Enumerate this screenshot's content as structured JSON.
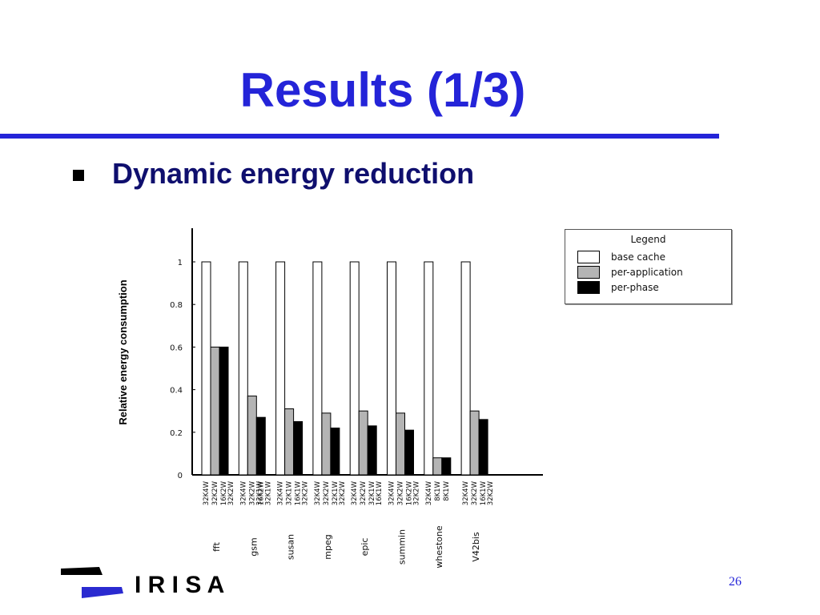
{
  "slide": {
    "title": "Results (1/3)",
    "bullet": "Dynamic energy reduction",
    "page_number": "26",
    "logo_text": "I R I S A"
  },
  "colors": {
    "title": "#2424d8",
    "rule": "#2424d8",
    "bullet_text": "#0f0f6e",
    "page_number": "#2424d8",
    "base": "#ffffff",
    "per_application": "#b4b4b4",
    "per_phase": "#000000"
  },
  "chart_data": {
    "type": "bar",
    "ylabel": "Relative energy consumption",
    "ylim": [
      0,
      1.05
    ],
    "yticks": [
      "0",
      "0.2",
      "0.4",
      "0.6",
      "0.8",
      "1"
    ],
    "grid": false,
    "legend": {
      "title": "Legend",
      "placement": "top-right",
      "entries": [
        "base cache",
        "per-application",
        "per-phase"
      ]
    },
    "categories": [
      "fft",
      "gsm",
      "susan",
      "mpeg",
      "epic",
      "summin",
      "whestone",
      "V42bis"
    ],
    "bar_labels": [
      [
        "32K4W",
        "32K2W",
        "16K2W|32K2W"
      ],
      [
        "32K4W",
        "32K2W|32K1W",
        "16K2W|32K1W"
      ],
      [
        "32K4W",
        "32K1W",
        "16K1W|32K2W"
      ],
      [
        "32K4W",
        "32K2W",
        "32K1W|32K2W"
      ],
      [
        "32K4W",
        "32K2W",
        "32K1W|16K1W"
      ],
      [
        "32K4W",
        "32K2W",
        "16K2W|32K2W"
      ],
      [
        "32K4W",
        "8K1W",
        "8K1W"
      ],
      [
        "32K4W",
        "32K2W",
        "16K1W|32K2W"
      ]
    ],
    "series": [
      {
        "name": "base cache",
        "values": [
          1,
          1,
          1,
          1,
          1,
          1,
          1,
          1
        ]
      },
      {
        "name": "per-application",
        "values": [
          0.6,
          0.37,
          0.31,
          0.29,
          0.3,
          0.29,
          0.08,
          0.3
        ]
      },
      {
        "name": "per-phase",
        "values": [
          0.6,
          0.27,
          0.25,
          0.22,
          0.23,
          0.21,
          0.08,
          0.26
        ]
      }
    ]
  }
}
